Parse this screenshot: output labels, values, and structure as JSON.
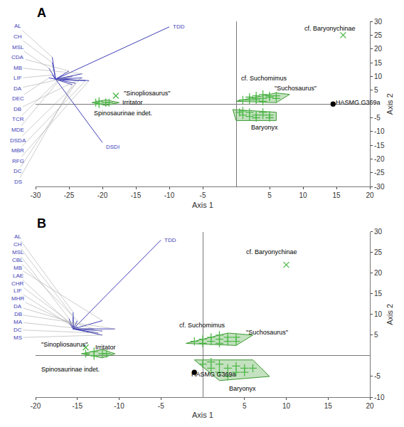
{
  "chart_data": [
    {
      "type": "biplot",
      "title": "A",
      "xlabel": "Axis 1",
      "ylabel": "Axis 2",
      "xlim": [
        -30,
        20
      ],
      "ylim": [
        -30,
        30
      ],
      "xticks": [
        -30,
        -25,
        -20,
        -15,
        -10,
        -5,
        5,
        10,
        15,
        20
      ],
      "yticks": [
        -30,
        -25,
        -20,
        -15,
        -10,
        -5,
        5,
        10,
        15,
        20,
        25,
        30
      ],
      "grid": false,
      "series": [
        {
          "type": "vector",
          "color": "#4040b8",
          "origin": [
            -27.0,
            9.0
          ],
          "names": [
            "TDD",
            "DSDI",
            "AL",
            "CH",
            "MSL",
            "CDA",
            "MB",
            "LIF",
            "DA",
            "DB",
            "DEC",
            "TCR",
            "RFG",
            "DSDA",
            "MBR",
            "MDE",
            "DC",
            "DS"
          ],
          "x": [
            -10,
            -20,
            -27.5,
            -27.5,
            -28,
            -25,
            -23,
            -27.5,
            -24.5,
            -23,
            -28,
            -26.5,
            -22,
            -23.5,
            -22.5,
            -26.5,
            -24,
            -24.5
          ],
          "y": [
            28,
            -14,
            17,
            15,
            13,
            12,
            11,
            10.5,
            10,
            9.5,
            9.5,
            9,
            8.5,
            8.5,
            8.5,
            8.5,
            7.5,
            7
          ]
        },
        {
          "type": "polygon",
          "color": "#3a9a30",
          "x": [
            0,
            6,
            8,
            6,
            0
          ],
          "y": [
            1,
            4,
            3.5,
            0.5,
            1
          ]
        },
        {
          "type": "scatter",
          "marker": "plus",
          "color": "#4db848",
          "x": [
            1,
            2,
            3,
            4,
            5,
            6,
            4,
            3,
            5,
            6,
            2,
            4,
            3
          ],
          "y": [
            1.5,
            2.5,
            3,
            3.5,
            3,
            3,
            2,
            1.5,
            2.5,
            2,
            1.5,
            1,
            2
          ]
        },
        {
          "type": "polygon",
          "color": "#3a9a30",
          "x": [
            -0.5,
            0,
            6,
            6,
            -0.5
          ],
          "y": [
            -2,
            -6,
            -6,
            -3,
            -2
          ]
        },
        {
          "type": "scatter",
          "marker": "plus",
          "color": "#4db848",
          "x": [
            0.5,
            1,
            2,
            3,
            4,
            5,
            4,
            2,
            1,
            3,
            5
          ],
          "y": [
            -3,
            -2.5,
            -3,
            -4,
            -4,
            -5,
            -3,
            -4.5,
            -4,
            -5,
            -4
          ]
        },
        {
          "type": "polygon",
          "color": "#3a9a30",
          "x": [
            -21.5,
            -19.5,
            -17.5,
            -19.5
          ],
          "y": [
            0.5,
            1.5,
            0.5,
            -0.5
          ]
        },
        {
          "type": "scatter",
          "marker": "plus",
          "color": "#4db848",
          "x": [
            -21,
            -20.5,
            -19.5,
            -20.5,
            -19
          ],
          "y": [
            0.5,
            1.0,
            0.5,
            0.0,
            0.5
          ]
        },
        {
          "type": "scatter",
          "marker": "x",
          "color": "#4db848",
          "x": [
            16
          ],
          "y": [
            25
          ]
        },
        {
          "type": "scatter",
          "marker": "x",
          "color": "#4db848",
          "x": [
            -18
          ],
          "y": [
            3
          ]
        },
        {
          "type": "scatter",
          "marker": "circle",
          "color": "#000000",
          "x": [
            14.5
          ],
          "y": [
            0
          ]
        }
      ],
      "annotations": [
        {
          "text": "cf. Baryonychinae",
          "x": 10,
          "y": 25.5
        },
        {
          "text": "cf. Suchomimus",
          "x": 0.5,
          "y": 7.5
        },
        {
          "text": "\"Suchosaurus\"",
          "x": 5.5,
          "y": 3.8
        },
        {
          "text": "Baryonyx",
          "x": 2,
          "y": -8.5
        },
        {
          "text": "Spinosaurinae indet.",
          "x": -21.5,
          "y": -1.5
        },
        {
          "text": "Irritator",
          "x": -17.2,
          "y": 0.5
        },
        {
          "text": "\"Sinopliosaurus\"",
          "x": -17,
          "y": 3.8
        },
        {
          "text": "HASMG G369a",
          "x": 14.7,
          "y": 0.5
        }
      ]
    },
    {
      "type": "biplot",
      "title": "B",
      "xlabel": "Axis 1",
      "ylabel": "Axis 2",
      "xlim": [
        -20,
        20
      ],
      "ylim": [
        -10,
        30
      ],
      "xticks": [
        -20,
        -15,
        -10,
        -5,
        5,
        10,
        15,
        20
      ],
      "yticks": [
        -10,
        -5,
        5,
        10,
        15,
        20,
        25,
        30
      ],
      "grid": false,
      "series": [
        {
          "type": "vector",
          "color": "#4040b8",
          "origin": [
            -15.5,
            6.5
          ],
          "names": [
            "TDD",
            "AL",
            "CH",
            "MSL",
            "CBL",
            "LAE",
            "MB",
            "CHR",
            "LIF",
            "MHR",
            "DA",
            "MA",
            "DB",
            "DC",
            "MS"
          ],
          "x": [
            -5,
            -15.5,
            -15.5,
            -16,
            -15,
            -16,
            -12,
            -15.5,
            -15.5,
            -15,
            -13,
            -12,
            -10.5,
            -12.5,
            -12
          ],
          "y": [
            28,
            10.5,
            9.5,
            9,
            8.5,
            8,
            8.5,
            7.5,
            7,
            7,
            6.5,
            6,
            6.5,
            5.5,
            5
          ]
        },
        {
          "type": "polygon",
          "color": "#3a9a30",
          "x": [
            -2,
            3,
            6,
            4,
            -2
          ],
          "y": [
            3,
            5.5,
            5,
            2.5,
            3
          ]
        },
        {
          "type": "scatter",
          "marker": "plus",
          "color": "#4db848",
          "x": [
            -1,
            0,
            1,
            2,
            3,
            4,
            3,
            2,
            1,
            4,
            0,
            2
          ],
          "y": [
            3.5,
            4,
            4.5,
            5,
            4.5,
            4.5,
            3.5,
            4,
            3.5,
            3.5,
            3,
            3
          ]
        },
        {
          "type": "polygon",
          "color": "#3a9a30",
          "x": [
            -1,
            6,
            8,
            2,
            -1
          ],
          "y": [
            -1,
            -1,
            -5,
            -6,
            -1
          ]
        },
        {
          "type": "scatter",
          "marker": "plus",
          "color": "#4db848",
          "x": [
            0,
            1,
            2,
            3,
            4,
            5,
            4,
            2,
            1,
            3,
            5,
            6
          ],
          "y": [
            -2,
            -1.5,
            -2,
            -3,
            -2.5,
            -3,
            -4,
            -4,
            -3,
            -5,
            -4,
            -3
          ]
        },
        {
          "type": "polygon",
          "color": "#3a9a30",
          "x": [
            -14.5,
            -12,
            -10.5,
            -12
          ],
          "y": [
            0.5,
            1.5,
            0.5,
            -0.5
          ]
        },
        {
          "type": "scatter",
          "marker": "plus",
          "color": "#4db848",
          "x": [
            -14,
            -13,
            -12,
            -13,
            -11.5
          ],
          "y": [
            0.5,
            1.0,
            0.5,
            0.0,
            0.5
          ]
        },
        {
          "type": "scatter",
          "marker": "x",
          "color": "#4db848",
          "x": [
            10
          ],
          "y": [
            22
          ]
        },
        {
          "type": "scatter",
          "marker": "x",
          "color": "#4db848",
          "x": [
            -14
          ],
          "y": [
            2
          ]
        },
        {
          "type": "scatter",
          "marker": "circle",
          "color": "#000000",
          "x": [
            -1
          ],
          "y": [
            -4
          ]
        }
      ],
      "annotations": [
        {
          "text": "cf. Baryonychinae",
          "x": 5,
          "y": 24
        },
        {
          "text": "cf. Suchomimus",
          "x": -3,
          "y": 6.2
        },
        {
          "text": "\"Suchosaurus\"",
          "x": 5,
          "y": 4.5
        },
        {
          "text": "Baryonyx",
          "x": 3,
          "y": -8
        },
        {
          "text": "Spinosaurinae indet.",
          "x": -19.5,
          "y": -2
        },
        {
          "text": "Irritator",
          "x": -13,
          "y": 2
        },
        {
          "text": "\"Sinopliosaurus\"",
          "x": -19.5,
          "y": 2.8
        },
        {
          "text": "HASMG G369a",
          "x": -1.5,
          "y": -4.5
        }
      ]
    }
  ]
}
